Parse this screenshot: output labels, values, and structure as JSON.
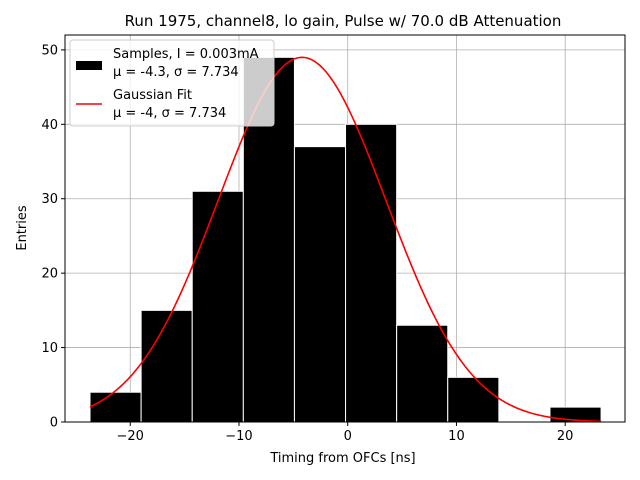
{
  "chart_data": {
    "type": "bar",
    "title": "Run 1975, channel8, lo gain, Pulse w/ 70.0 dB Attenuation",
    "xlabel": "Timing from OFCs [ns]",
    "ylabel": "Entries",
    "xlim": [
      -26,
      25.5
    ],
    "ylim": [
      0,
      52
    ],
    "grid": true,
    "x_ticks": [
      -20,
      -10,
      0,
      10,
      20
    ],
    "x_tick_labels": [
      "−20",
      "−10",
      "0",
      "10",
      "20"
    ],
    "y_ticks": [
      0,
      10,
      20,
      30,
      40,
      50
    ],
    "y_tick_labels": [
      "0",
      "10",
      "20",
      "30",
      "40",
      "50"
    ],
    "bins": [
      {
        "x0": -23.7,
        "x1": -19.0,
        "count": 4
      },
      {
        "x0": -19.0,
        "x1": -14.3,
        "count": 15
      },
      {
        "x0": -14.3,
        "x1": -9.6,
        "count": 31
      },
      {
        "x0": -9.6,
        "x1": -4.9,
        "count": 49
      },
      {
        "x0": -4.9,
        "x1": -0.2,
        "count": 37
      },
      {
        "x0": -0.2,
        "x1": 4.5,
        "count": 40
      },
      {
        "x0": 4.5,
        "x1": 9.2,
        "count": 13
      },
      {
        "x0": 9.2,
        "x1": 13.9,
        "count": 6
      },
      {
        "x0": 13.9,
        "x1": 18.6,
        "count": 0
      },
      {
        "x0": 18.6,
        "x1": 23.3,
        "count": 2
      }
    ],
    "fit": {
      "mu": -4.2,
      "sigma": 7.734,
      "amplitude": 49,
      "x_range": [
        -23.7,
        23.3
      ]
    },
    "bar_color": "#000000",
    "bar_edge_color": "#ffffff",
    "fit_color": "#ff0000",
    "legend_position": "upper-left",
    "legend": [
      {
        "line1": "Samples, I = 0.003mA",
        "line2": "μ = -4.3, σ = 7.734"
      },
      {
        "line1": "Gaussian Fit",
        "line2": "μ = -4, σ = 7.734"
      }
    ]
  }
}
